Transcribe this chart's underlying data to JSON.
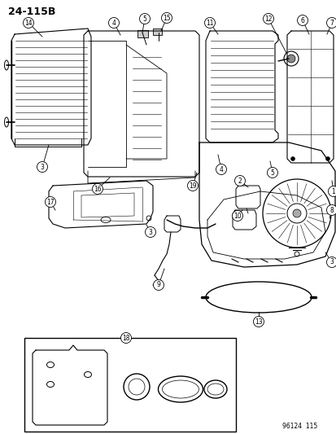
{
  "title": "24-115B",
  "bg_color": "#ffffff",
  "footer_text": "96124  115",
  "fig_width": 4.14,
  "fig_height": 5.33,
  "dpi": 100,
  "lw_main": 0.7,
  "lw_fine": 0.4,
  "label_r": 6.5,
  "label_fs": 5.5
}
